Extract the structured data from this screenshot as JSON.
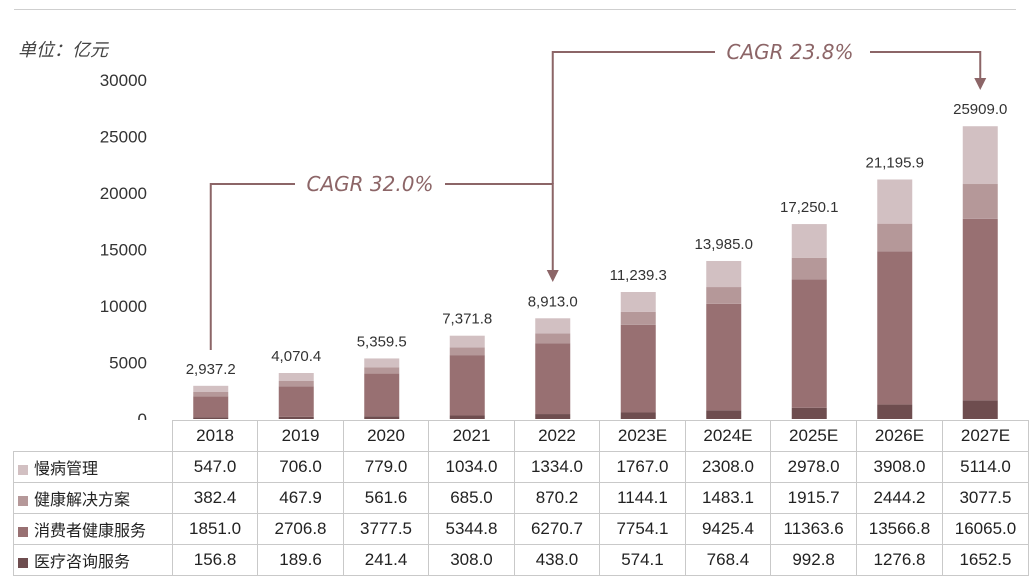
{
  "unit_label": "单位：亿元",
  "chart_data": {
    "type": "bar",
    "stacked": true,
    "categories": [
      "2018",
      "2019",
      "2020",
      "2021",
      "2022",
      "2023E",
      "2024E",
      "2025E",
      "2026E",
      "2027E"
    ],
    "series": [
      {
        "name": "慢病管理",
        "color": "#d2c0c2",
        "values": [
          547.0,
          706.0,
          779.0,
          1034.0,
          1334.0,
          1767.0,
          2308.0,
          2978.0,
          3908.0,
          5114.0
        ]
      },
      {
        "name": "健康解决方案",
        "color": "#b59899",
        "values": [
          382.4,
          467.9,
          561.6,
          685.0,
          870.2,
          1144.1,
          1483.1,
          1915.7,
          2444.2,
          3077.5
        ]
      },
      {
        "name": "消费者健康服务",
        "color": "#987072",
        "values": [
          1851.0,
          2706.8,
          3777.5,
          5344.8,
          6270.7,
          7754.1,
          9425.4,
          11363.6,
          13566.8,
          16065.0
        ]
      },
      {
        "name": "医疗咨询服务",
        "color": "#6e4d4f",
        "values": [
          156.8,
          189.6,
          241.4,
          308.0,
          438.0,
          574.1,
          768.4,
          992.8,
          1276.8,
          1652.5
        ]
      }
    ],
    "totals": [
      "2,937.2",
      "4,070.4",
      "5,359.5",
      "7,371.8",
      "8,913.0",
      "11,239.3",
      "13,985.0",
      "17,250.1",
      "21,195.9",
      "25909.0"
    ],
    "table_values": [
      [
        "547.0",
        "706.0",
        "779.0",
        "1034.0",
        "1334.0",
        "1767.0",
        "2308.0",
        "2978.0",
        "3908.0",
        "5114.0"
      ],
      [
        "382.4",
        "467.9",
        "561.6",
        "685.0",
        "870.2",
        "1144.1",
        "1483.1",
        "1915.7",
        "2444.2",
        "3077.5"
      ],
      [
        "1851.0",
        "2706.8",
        "3777.5",
        "5344.8",
        "6270.7",
        "7754.1",
        "9425.4",
        "11363.6",
        "13566.8",
        "16065.0"
      ],
      [
        "156.8",
        "189.6",
        "241.4",
        "308.0",
        "438.0",
        "574.1",
        "768.4",
        "992.8",
        "1276.8",
        "1652.5"
      ]
    ],
    "ylim": [
      0,
      30000
    ],
    "yticks": [
      "30000",
      "25000",
      "20000",
      "15000",
      "10000",
      "5000",
      "0"
    ],
    "annotations": [
      {
        "text": "CAGR 32.0%",
        "from": "2018",
        "to": "2022"
      },
      {
        "text": "CAGR 23.8%",
        "from": "2022",
        "to": "2027E"
      }
    ],
    "annotation_color": "#8c6567"
  }
}
